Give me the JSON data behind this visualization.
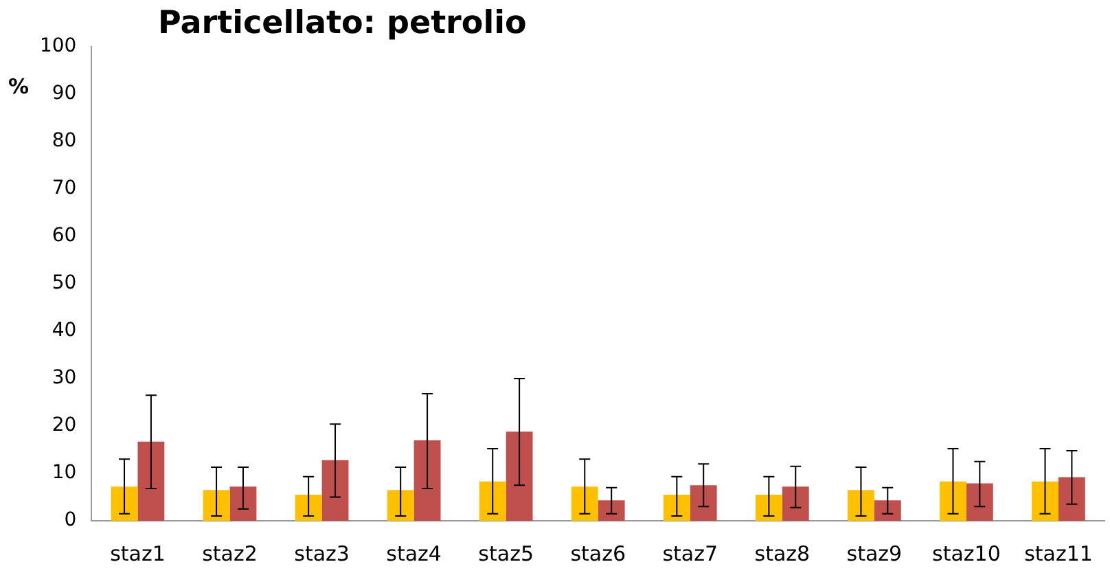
{
  "chart_data": {
    "type": "bar",
    "title": "Particellato: petrolio",
    "ylabel": "%",
    "categories": [
      "staz1",
      "staz2",
      "staz3",
      "staz4",
      "staz5",
      "staz6",
      "staz7",
      "staz8",
      "staz9",
      "staz10",
      "staz11"
    ],
    "series": [
      {
        "color": "#ffc000",
        "values": [
          7.2,
          6.5,
          5.5,
          6.5,
          8.3,
          7.2,
          5.5,
          5.5,
          6.5,
          8.3,
          8.3
        ],
        "errors": [
          [
            1.5,
            13
          ],
          [
            1,
            11.3
          ],
          [
            1,
            9.3
          ],
          [
            1,
            11.3
          ],
          [
            1.5,
            15.2
          ],
          [
            1.5,
            13
          ],
          [
            1,
            9.3
          ],
          [
            1,
            9.3
          ],
          [
            1,
            11.3
          ],
          [
            1.5,
            15.2
          ],
          [
            1.5,
            15.2
          ]
        ]
      },
      {
        "color": "#c0504d",
        "values": [
          16.7,
          7.2,
          12.8,
          17,
          18.8,
          4.3,
          7.5,
          7.2,
          4.3,
          7.9,
          9.2
        ],
        "errors": [
          [
            6.8,
            26.5
          ],
          [
            2.5,
            11.3
          ],
          [
            5,
            20.4
          ],
          [
            6.8,
            26.8
          ],
          [
            7.5,
            30
          ],
          [
            1.5,
            7
          ],
          [
            3,
            12
          ],
          [
            2.8,
            11.5
          ],
          [
            1.5,
            7
          ],
          [
            3,
            12.5
          ],
          [
            3.5,
            14.8
          ]
        ]
      }
    ],
    "ylim": [
      0,
      100
    ],
    "yticks": [
      0,
      10,
      20,
      30,
      40,
      50,
      60,
      70,
      80,
      90,
      100
    ],
    "grid": false,
    "legend": false
  }
}
